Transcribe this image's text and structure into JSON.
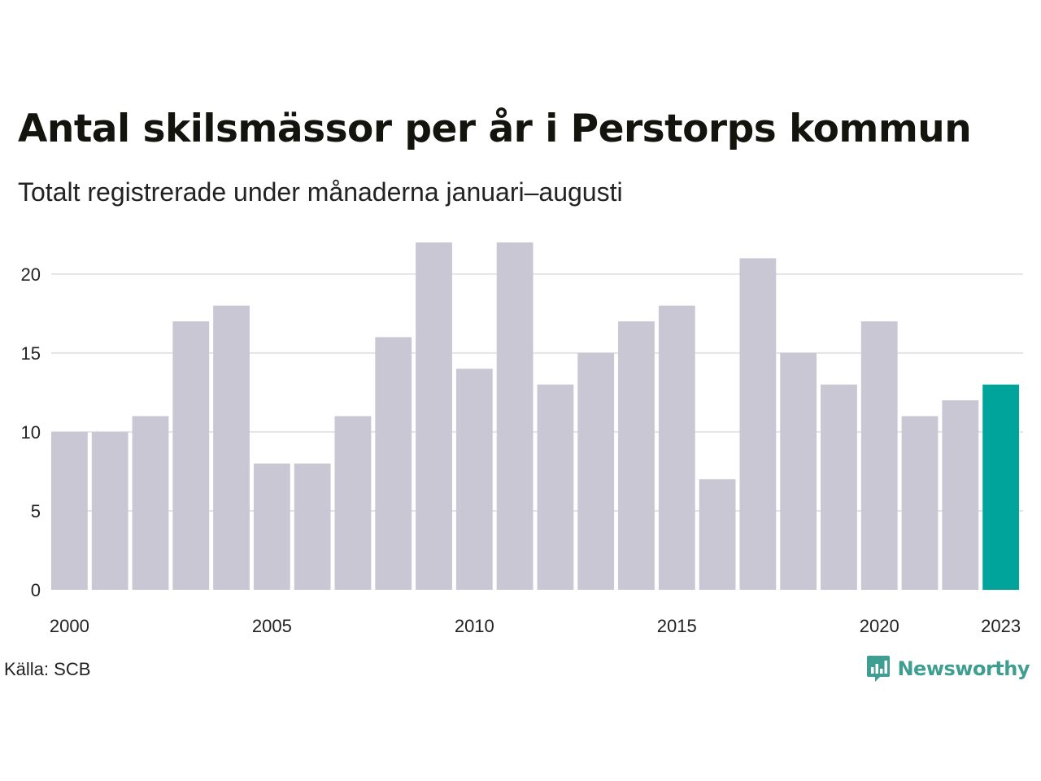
{
  "header": {
    "title": "Antal skilsmässor per år i Perstorps kommun",
    "subtitle": "Totalt registrerade under månaderna januari–augusti"
  },
  "footer": {
    "source": "Källa: SCB",
    "brand": "Newsworthy",
    "brand_icon": "bar-chart-speech-bubble-icon"
  },
  "colors": {
    "bar": "#c8c7d3",
    "highlight": "#00a49a",
    "grid": "#e4e4e8",
    "axis_text": "#222222",
    "brand": "#3f9e92"
  },
  "chart_data": {
    "type": "bar",
    "categories": [
      "2000",
      "2001",
      "2002",
      "2003",
      "2004",
      "2005",
      "2006",
      "2007",
      "2008",
      "2009",
      "2010",
      "2011",
      "2012",
      "2013",
      "2014",
      "2015",
      "2016",
      "2017",
      "2018",
      "2019",
      "2020",
      "2021",
      "2022",
      "2023"
    ],
    "values": [
      10,
      10,
      11,
      17,
      18,
      8,
      8,
      11,
      16,
      22,
      14,
      22,
      13,
      15,
      17,
      18,
      7,
      21,
      15,
      13,
      17,
      11,
      12,
      13
    ],
    "highlight_category": "2023",
    "x_tick_labels": [
      "2000",
      "2005",
      "2010",
      "2015",
      "2020",
      "2023"
    ],
    "y_ticks": [
      0,
      5,
      10,
      15,
      20
    ],
    "ylim": [
      0,
      22
    ],
    "grid": true,
    "legend": false,
    "title": "Antal skilsmässor per år i Perstorps kommun",
    "subtitle": "Totalt registrerade under månaderna januari–augusti",
    "xlabel": "",
    "ylabel": ""
  }
}
